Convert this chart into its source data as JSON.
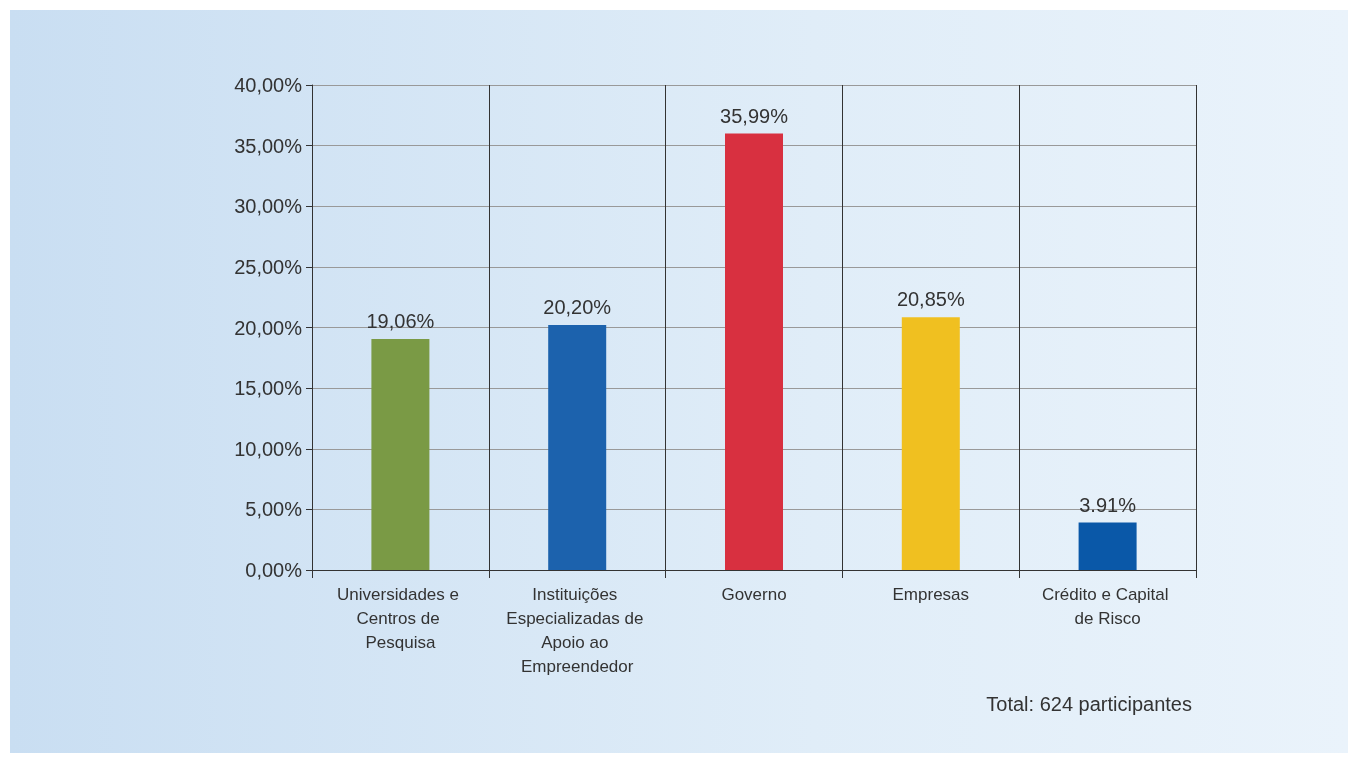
{
  "chart_data": {
    "type": "bar",
    "categories": [
      "Universidades e Centros de Pesquisa",
      "Instituições Especializadas de Apoio ao Empreendedor",
      "Governo",
      "Empresas",
      "Crédito e Capital de Risco"
    ],
    "values": [
      19.06,
      20.2,
      35.99,
      20.85,
      3.91
    ],
    "value_labels": [
      "19,06%",
      "20,20%",
      "35,99%",
      "20,85%",
      "3.91%"
    ],
    "colors": [
      "#7a9a45",
      "#1c62ad",
      "#d83040",
      "#f0c020",
      "#0a58a8"
    ],
    "ylim": [
      0,
      40
    ],
    "yticks": [
      {
        "value": 0,
        "label": "0,00%"
      },
      {
        "value": 5,
        "label": "5,00%"
      },
      {
        "value": 10,
        "label": "10,00%"
      },
      {
        "value": 15,
        "label": "15,00%"
      },
      {
        "value": 20,
        "label": "20,00%"
      },
      {
        "value": 25,
        "label": "25,00%"
      },
      {
        "value": 30,
        "label": "30,00%"
      },
      {
        "value": 35,
        "label": "35,00%"
      },
      {
        "value": 40,
        "label": "40,00%"
      }
    ],
    "grid": true,
    "annotations": [
      "Total: 624 participantes"
    ]
  }
}
